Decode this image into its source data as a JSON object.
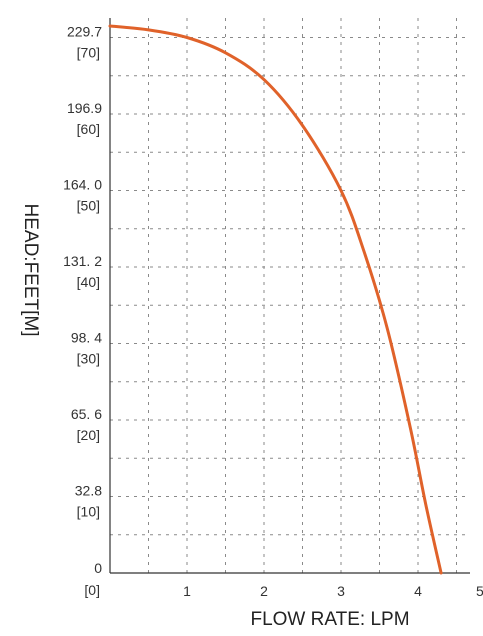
{
  "chart_data": {
    "type": "line",
    "xlabel": "FLOW RATE: LPM",
    "ylabel": "HEAD:FEET[M]",
    "xlim": [
      0,
      4.65
    ],
    "ylim": [
      0,
      72
    ],
    "x_ticks": [
      {
        "v": 0,
        "label": ""
      },
      {
        "v": 1,
        "label": "1"
      },
      {
        "v": 2,
        "label": "2"
      },
      {
        "v": 3,
        "label": "3"
      },
      {
        "v": 4,
        "label": "4"
      }
    ],
    "x_tick_partial": "5",
    "y_ticks": [
      {
        "v": 0,
        "feet": "0",
        "m": "[0]"
      },
      {
        "v": 10,
        "feet": "32.8",
        "m": "[10]"
      },
      {
        "v": 20,
        "feet": "65. 6",
        "m": "[20]"
      },
      {
        "v": 30,
        "feet": "98. 4",
        "m": "[30]"
      },
      {
        "v": 40,
        "feet": "131. 2",
        "m": "[40]"
      },
      {
        "v": 50,
        "feet": "164. 0",
        "m": "[50]"
      },
      {
        "v": 60,
        "feet": "196.9",
        "m": "[60]"
      },
      {
        "v": 70,
        "feet": "229.7",
        "m": "[70]"
      }
    ],
    "grid": true,
    "series": [
      {
        "color": "#e0622a",
        "x": [
          0,
          0.5,
          1.0,
          1.5,
          2.0,
          2.5,
          3.0,
          3.3,
          3.6,
          3.9,
          4.1,
          4.3
        ],
        "y": [
          71.5,
          71.0,
          70.0,
          68.0,
          64.5,
          58.5,
          50.0,
          42.0,
          32.0,
          19.0,
          9.0,
          0
        ]
      }
    ]
  }
}
